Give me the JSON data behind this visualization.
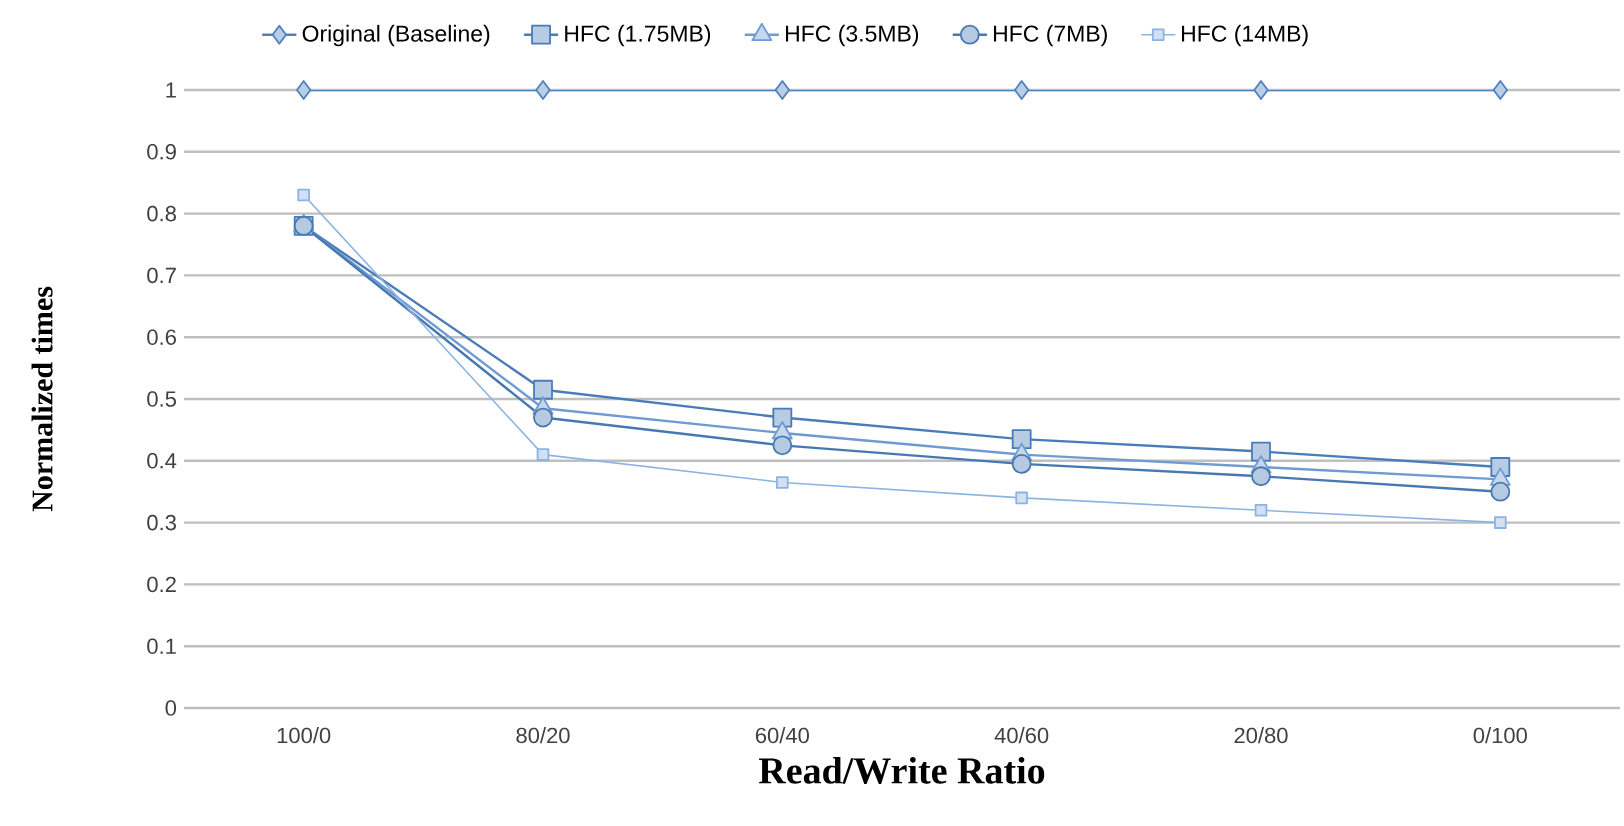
{
  "chart_data": {
    "type": "line",
    "xlabel": "Read/Write Ratio",
    "ylabel": "Normalized times",
    "categories": [
      "100/0",
      "80/20",
      "60/40",
      "40/60",
      "20/80",
      "0/100"
    ],
    "ylim": [
      0,
      1
    ],
    "yticks": [
      0,
      0.1,
      0.2,
      0.3,
      0.4,
      0.5,
      0.6,
      0.7,
      0.8,
      0.9,
      1
    ],
    "grid": "y",
    "legend": "top",
    "line_style": "solid",
    "series": [
      {
        "name": "Original (Baseline)",
        "color": "#4f81bd",
        "marker": "diamond",
        "values": [
          1,
          1,
          1,
          1,
          1,
          1
        ]
      },
      {
        "name": "HFC (1.75MB)",
        "color": "#4a7cba",
        "marker": "square",
        "values": [
          0.78,
          0.515,
          0.47,
          0.435,
          0.415,
          0.39
        ]
      },
      {
        "name": "HFC (3.5MB)",
        "color": "#6f9bd1",
        "marker": "triangle",
        "values": [
          0.78,
          0.485,
          0.445,
          0.41,
          0.39,
          0.37
        ]
      },
      {
        "name": "HFC (7MB)",
        "color": "#4679b2",
        "marker": "circle",
        "values": [
          0.78,
          0.47,
          0.425,
          0.395,
          0.375,
          0.35
        ]
      },
      {
        "name": "HFC (14MB)",
        "color": "#8db3e2",
        "marker": "square",
        "values": [
          0.83,
          0.41,
          0.365,
          0.34,
          0.32,
          0.3
        ]
      }
    ]
  }
}
